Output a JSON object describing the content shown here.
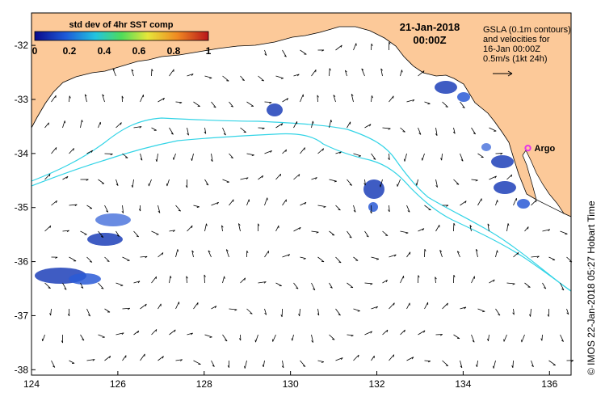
{
  "map": {
    "date": "21-Jan-2018",
    "time": "00:00Z",
    "info_lines": [
      "GSLA (0.1m contours)",
      "and velocities for",
      "16-Jan 00:00Z",
      "0.5m/s (1kt 24h)"
    ],
    "argo_label": "Argo",
    "credit": "© IMOS 22-Jan-2018 05:27 Hobart Time",
    "lon_range": [
      124,
      136.5
    ],
    "lat_range": [
      -38.1,
      -31.4
    ],
    "x_ticks": [
      "124",
      "126",
      "128",
      "130",
      "132",
      "134",
      "136"
    ],
    "y_ticks": [
      "-32",
      "-33",
      "-34",
      "-35",
      "-36",
      "-37",
      "-38"
    ],
    "colors": {
      "land": "#fcc999",
      "ocean": "#ffffff",
      "contour": "#33d4e6",
      "argo_marker": "#e535e8"
    }
  },
  "colorbar": {
    "title": "std dev of 4hr SST comp",
    "labels": [
      "0",
      "0.2",
      "0.4",
      "0.6",
      "0.8",
      "1"
    ],
    "colors": [
      "#0a0a8c",
      "#1d5bd8",
      "#22c4e0",
      "#4fdc5a",
      "#e6e63a",
      "#f08a22",
      "#b8141a"
    ]
  },
  "argo": {
    "lon": 135.5,
    "lat": -33.9
  }
}
